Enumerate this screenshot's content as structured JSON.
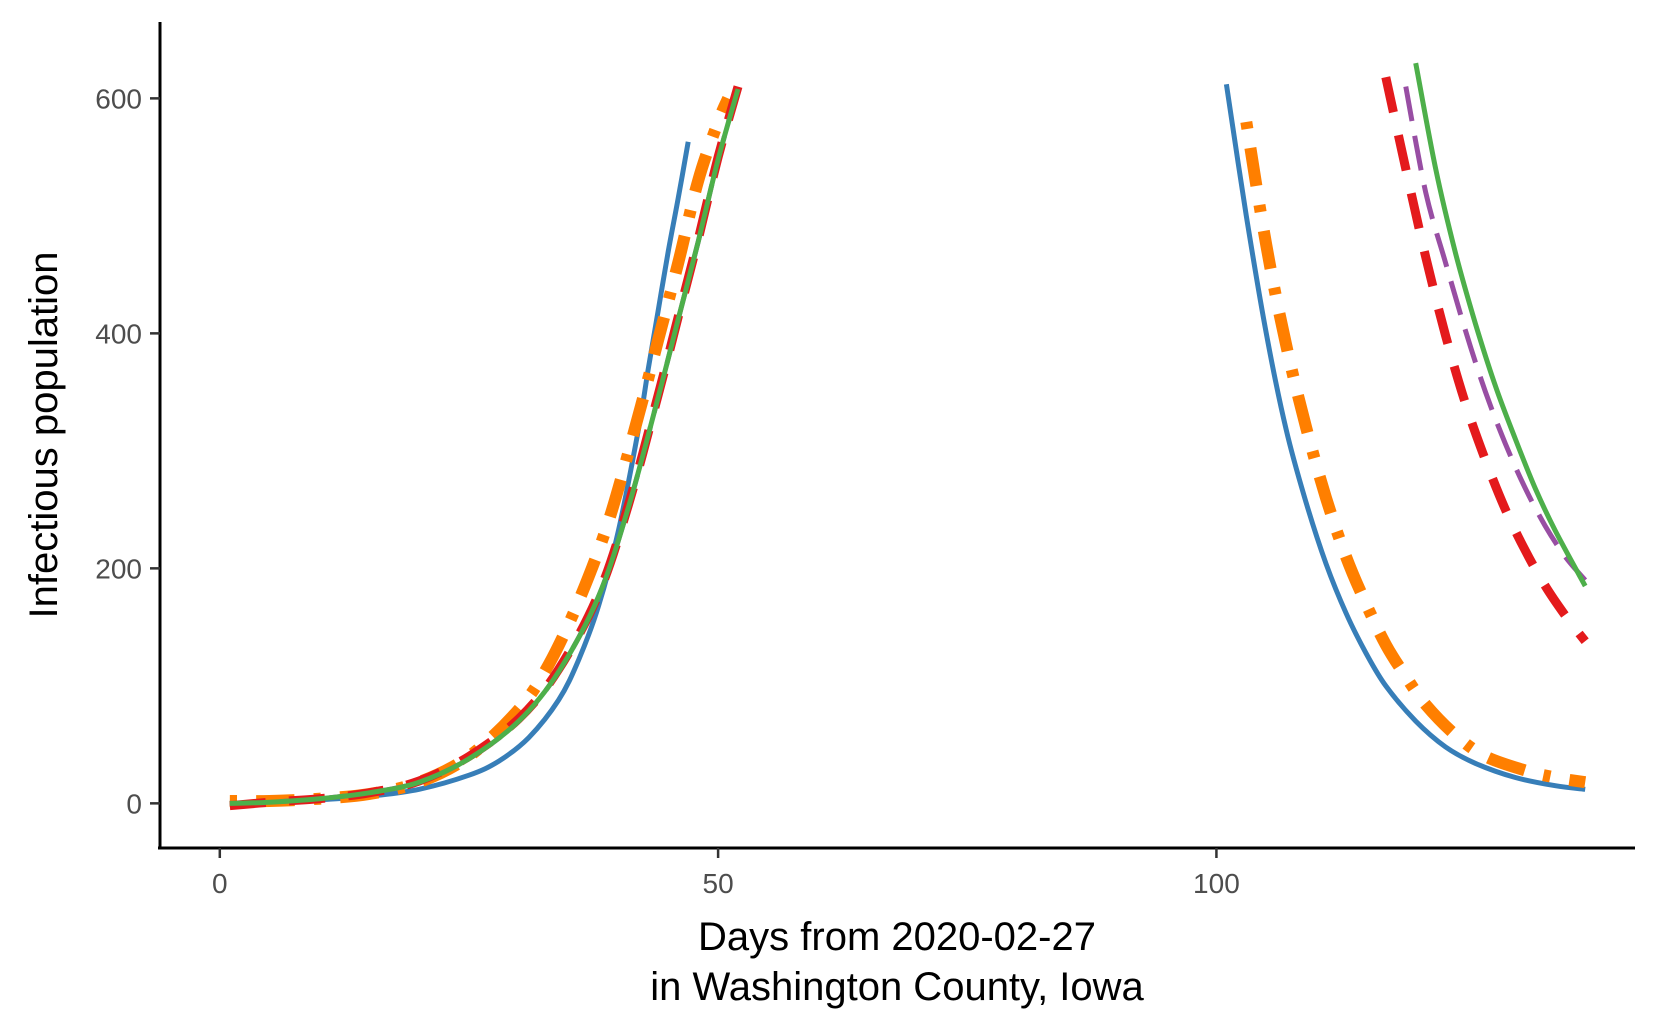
{
  "chart_data": {
    "type": "line",
    "title": "",
    "xlabel": [
      "Days from 2020-02-27",
      "in Washington County, Iowa"
    ],
    "ylabel": "Infectious population",
    "xlim": [
      -6,
      142
    ],
    "ylim": [
      -38,
      665
    ],
    "x_ticks": [
      0,
      50,
      100
    ],
    "y_ticks": [
      0,
      200,
      400,
      600
    ],
    "grid": false,
    "legend": "none",
    "series": [
      {
        "color": "#377eb8",
        "dash": "solid",
        "width": 5,
        "segments": [
          {
            "x": [
              1,
              5,
              10,
              15,
              20,
              25,
              28,
              31,
              34,
              36,
              38,
              40,
              42,
              43,
              44,
              45,
              46,
              47
            ],
            "y": [
              0,
              1,
              3,
              6,
              12,
              24,
              36,
              56,
              88,
              122,
              168,
              232,
              318,
              370,
              420,
              470,
              515,
              563
            ]
          },
          {
            "x": [
              101,
              103,
              105,
              107,
              109,
              111,
              113,
              115,
              117,
              120,
              123,
              126,
              130,
              134,
              137
            ],
            "y": [
              612,
              500,
              400,
              318,
              256,
              204,
              162,
              128,
              100,
              70,
              48,
              34,
              22,
              15,
              12
            ]
          }
        ]
      },
      {
        "color": "#ff7f00",
        "dash": "dotdash",
        "width": 12,
        "segments": [
          {
            "x": [
              1,
              5,
              10,
              15,
              20,
              25,
              30,
              33,
              36,
              39,
              42,
              44,
              46,
              48,
              50,
              51
            ],
            "y": [
              2,
              2,
              4,
              8,
              18,
              40,
              80,
              118,
              172,
              240,
              330,
              395,
              460,
              530,
              580,
              600
            ]
          },
          {
            "x": [
              103,
              105,
              107,
              109,
              111,
              113,
              115,
              117,
              119,
              121,
              124,
              127,
              131,
              134,
              137
            ],
            "y": [
              580,
              475,
              390,
              320,
              260,
              210,
              170,
              135,
              108,
              84,
              58,
              40,
              28,
              22,
              18
            ]
          }
        ]
      },
      {
        "color": "#984ea3",
        "dash": "longdash",
        "width": 5,
        "segments": [
          {
            "x": [
              1,
              5,
              10,
              15,
              20,
              25,
              30,
              34,
              38,
              41,
              44,
              46,
              48,
              50,
              52
            ],
            "y": [
              0,
              1,
              4,
              9,
              18,
              38,
              70,
              112,
              176,
              252,
              346,
              412,
              478,
              548,
              608
            ]
          },
          {
            "x": [
              119,
              121,
              123,
              125,
              127,
              129,
              131,
              133,
              135,
              137
            ],
            "y": [
              610,
              520,
              460,
              402,
              350,
              306,
              268,
              236,
              210,
              190
            ]
          }
        ]
      },
      {
        "color": "#e41a1c",
        "dash": "dashed",
        "width": 9,
        "segments": [
          {
            "x": [
              1,
              5,
              10,
              15,
              20,
              25,
              30,
              34,
              38,
              41,
              44,
              46,
              48,
              50,
              52
            ],
            "y": [
              -2,
              1,
              4,
              9,
              19,
              40,
              72,
              114,
              178,
              254,
              348,
              414,
              480,
              550,
              610
            ]
          },
          {
            "x": [
              117,
              119,
              121,
              123,
              125,
              127,
              129,
              131,
              133,
              135,
              137
            ],
            "y": [
              618,
              540,
              465,
              398,
              340,
              292,
              250,
              215,
              185,
              160,
              138
            ]
          }
        ]
      },
      {
        "color": "#4daf4a",
        "dash": "solid",
        "width": 5,
        "segments": [
          {
            "x": [
              1,
              5,
              10,
              15,
              20,
              25,
              30,
              34,
              38,
              41,
              44,
              46,
              48,
              50,
              52
            ],
            "y": [
              0,
              1,
              4,
              9,
              18,
              38,
              70,
              112,
              176,
              252,
              346,
              412,
              478,
              548,
              608
            ]
          },
          {
            "x": [
              120,
              122,
              124,
              126,
              128,
              130,
              132,
              134,
              137
            ],
            "y": [
              630,
              540,
              468,
              408,
              355,
              310,
              268,
              232,
              185
            ]
          }
        ]
      }
    ]
  }
}
